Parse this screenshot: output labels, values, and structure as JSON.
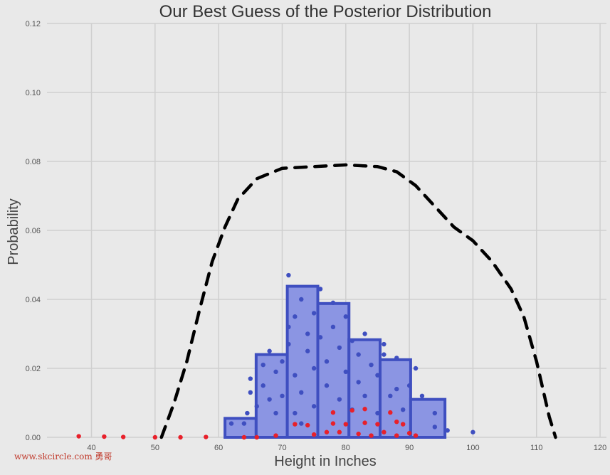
{
  "chart_data": {
    "type": "bar",
    "title": "Our Best Guess of the Posterior Distribution",
    "xlabel": "Height in Inches",
    "ylabel": "Probability",
    "xlim": [
      33,
      121
    ],
    "ylim": [
      0,
      0.12
    ],
    "xticks": [
      40,
      50,
      60,
      70,
      80,
      90,
      100,
      110,
      120
    ],
    "yticks": [
      0.0,
      0.02,
      0.04,
      0.06,
      0.08,
      0.1,
      0.12
    ],
    "ytick_labels": [
      "0.00",
      "0.02",
      "0.04",
      "0.06",
      "0.08",
      "0.10",
      "0.12"
    ],
    "grid": true,
    "histogram": {
      "bin_edges": [
        61,
        65.9,
        70.8,
        75.6,
        80.5,
        85.4,
        90.2,
        95.6
      ],
      "values": [
        0.0055,
        0.024,
        0.0438,
        0.0388,
        0.0283,
        0.0225,
        0.011
      ],
      "color": "#3f4fc0",
      "fill": "#8b95e3"
    },
    "dashed_curve": {
      "color": "#000000",
      "x": [
        51,
        53,
        55,
        57,
        59,
        61,
        63,
        66,
        70,
        75,
        80,
        85,
        88,
        91,
        94,
        97,
        100,
        103,
        106,
        108,
        110,
        111,
        112,
        113
      ],
      "y": [
        0.0,
        0.01,
        0.022,
        0.037,
        0.051,
        0.061,
        0.069,
        0.075,
        0.078,
        0.0785,
        0.079,
        0.0785,
        0.077,
        0.073,
        0.067,
        0.061,
        0.057,
        0.051,
        0.043,
        0.035,
        0.022,
        0.014,
        0.006,
        0.0
      ]
    },
    "scatter_blue": {
      "color": "#3f4fc0",
      "points": [
        [
          62,
          0.004
        ],
        [
          64,
          0.004
        ],
        [
          64.5,
          0.007
        ],
        [
          65,
          0.013
        ],
        [
          65,
          0.017
        ],
        [
          66,
          0.009
        ],
        [
          67,
          0.015
        ],
        [
          67,
          0.021
        ],
        [
          68,
          0.025
        ],
        [
          68,
          0.011
        ],
        [
          69,
          0.019
        ],
        [
          69,
          0.007
        ],
        [
          70,
          0.012
        ],
        [
          70,
          0.022
        ],
        [
          71,
          0.032
        ],
        [
          71,
          0.027
        ],
        [
          71,
          0.047
        ],
        [
          72,
          0.018
        ],
        [
          72,
          0.035
        ],
        [
          72,
          0.007
        ],
        [
          73,
          0.004
        ],
        [
          73,
          0.04
        ],
        [
          73,
          0.013
        ],
        [
          74,
          0.025
        ],
        [
          74,
          0.03
        ],
        [
          75,
          0.036
        ],
        [
          75,
          0.009
        ],
        [
          75,
          0.02
        ],
        [
          76,
          0.043
        ],
        [
          76,
          0.029
        ],
        [
          77,
          0.015
        ],
        [
          77,
          0.022
        ],
        [
          78,
          0.039
        ],
        [
          78,
          0.032
        ],
        [
          79,
          0.026
        ],
        [
          79,
          0.011
        ],
        [
          80,
          0.019
        ],
        [
          80,
          0.035
        ],
        [
          81,
          0.028
        ],
        [
          81,
          0.008
        ],
        [
          82,
          0.024
        ],
        [
          82,
          0.016
        ],
        [
          83,
          0.03
        ],
        [
          83,
          0.012
        ],
        [
          84,
          0.021
        ],
        [
          85,
          0.007
        ],
        [
          85,
          0.018
        ],
        [
          86,
          0.027
        ],
        [
          86,
          0.024
        ],
        [
          87,
          0.012
        ],
        [
          88,
          0.023
        ],
        [
          88,
          0.014
        ],
        [
          89,
          0.008
        ],
        [
          90,
          0.015
        ],
        [
          91,
          0.02
        ],
        [
          92,
          0.012
        ],
        [
          94,
          0.007
        ],
        [
          94,
          0.003
        ],
        [
          96,
          0.002
        ],
        [
          100,
          0.0015
        ]
      ]
    },
    "scatter_red": {
      "color": "#e8202a",
      "points": [
        [
          38,
          0.0003
        ],
        [
          42,
          0.0002
        ],
        [
          45,
          0.0001
        ],
        [
          50,
          0.0
        ],
        [
          54,
          0.0
        ],
        [
          58,
          0.0001
        ],
        [
          64,
          0.0
        ],
        [
          66,
          0.0
        ],
        [
          69,
          0.0005
        ],
        [
          72,
          0.0038
        ],
        [
          74,
          0.0035
        ],
        [
          75,
          0.0008
        ],
        [
          77,
          0.0015
        ],
        [
          78,
          0.0072
        ],
        [
          78,
          0.004
        ],
        [
          79,
          0.0015
        ],
        [
          80,
          0.0038
        ],
        [
          81,
          0.0078
        ],
        [
          82,
          0.001
        ],
        [
          83,
          0.0042
        ],
        [
          83,
          0.0082
        ],
        [
          84,
          0.0005
        ],
        [
          85,
          0.0038
        ],
        [
          86,
          0.0015
        ],
        [
          87,
          0.0072
        ],
        [
          88,
          0.0045
        ],
        [
          88,
          0.0005
        ],
        [
          89,
          0.0038
        ],
        [
          90,
          0.0012
        ],
        [
          91,
          0.0005
        ]
      ]
    }
  },
  "watermark": "www.skcircle.com 勇哥"
}
